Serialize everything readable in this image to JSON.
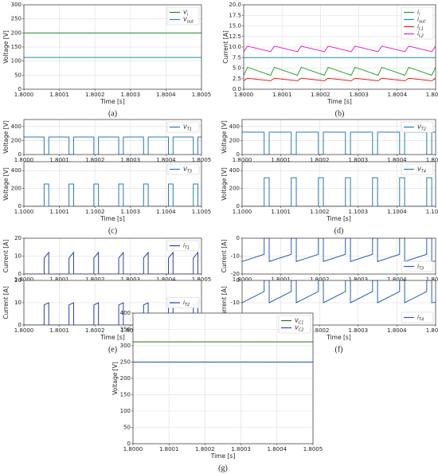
{
  "chart_data": [
    {
      "type": "line",
      "caption": "(a)",
      "ylabel": "Voltage [V]",
      "xlabel": "Time [s]",
      "legend": "upper right",
      "grid": true,
      "xlim": [
        1.8,
        1.8005
      ],
      "xticks": [
        {
          "value": 1.8,
          "label": "1.8000"
        },
        1.8001,
        1.8002,
        1.8003,
        1.8004,
        1.8005
      ],
      "ylim": [
        0,
        300
      ],
      "yticks": [
        0,
        50,
        100,
        150,
        200,
        250,
        300
      ],
      "x": [
        1.8,
        1.8005
      ],
      "series": [
        {
          "name": "V",
          "sub": "i",
          "color": "#1d8a2a",
          "values": [
            200,
            200
          ]
        },
        {
          "name": "V",
          "sub": "out",
          "color": "#1e8fa3",
          "values": [
            113,
            113
          ]
        }
      ]
    },
    {
      "type": "line",
      "caption": "(b)",
      "ylabel": "Current [A]",
      "xlabel": "Time [s]",
      "legend": "upper right",
      "grid": true,
      "xlim": [
        1.8,
        1.8005
      ],
      "xticks": [
        {
          "value": 1.8,
          "label": "1.8000"
        },
        1.8001,
        1.8002,
        1.8003,
        1.8004,
        1.8005
      ],
      "ylim": [
        0,
        20
      ],
      "yticks": [
        {
          "value": 0,
          "label": "0.0"
        },
        2.5,
        {
          "value": 5,
          "label": "5.0"
        },
        7.5,
        {
          "value": 10,
          "label": "10.0"
        },
        12.5,
        {
          "value": 15,
          "label": "15.0"
        },
        17.5,
        {
          "value": 20,
          "label": "20.0"
        }
      ],
      "x": [
        1.8,
        1.80001,
        1.80007,
        1.80008,
        1.80014,
        1.80015,
        1.80021,
        1.80022,
        1.80028,
        1.80029,
        1.80035,
        1.80036,
        1.80042,
        1.80043,
        1.80049,
        1.8005
      ],
      "series": [
        {
          "name": "i",
          "sub": "i",
          "color": "#2ca02c",
          "values": [
            3.3,
            5.2,
            3.3,
            5.2,
            3.3,
            5.2,
            3.3,
            5.2,
            3.3,
            5.2,
            3.3,
            5.2,
            3.3,
            5.2,
            3.3,
            5.2
          ]
        },
        {
          "name": "i",
          "sub": "out",
          "color": "#1e8fa3",
          "values": [
            7.5,
            7.5,
            7.5,
            7.5,
            7.5,
            7.5,
            7.5,
            7.5,
            7.5,
            7.5,
            7.5,
            7.5,
            7.5,
            7.5,
            7.5,
            7.5
          ]
        },
        {
          "name": "i",
          "sub": "L1",
          "color": "#e3201b",
          "values": [
            2.0,
            2.6,
            2.0,
            2.6,
            2.0,
            2.6,
            2.0,
            2.6,
            2.0,
            2.6,
            2.0,
            2.6,
            2.0,
            2.6,
            2.0,
            2.6
          ]
        },
        {
          "name": "i",
          "sub": "L2",
          "color": "#e022d2",
          "values": [
            8.9,
            10.2,
            8.9,
            10.2,
            8.9,
            10.2,
            8.9,
            10.2,
            8.9,
            10.2,
            8.9,
            10.2,
            8.9,
            10.2,
            8.9,
            10.2
          ]
        }
      ]
    },
    {
      "type": "line",
      "ylabel": "Voltage [V]",
      "legend": "upper right",
      "grid": true,
      "xlim": [
        1.8,
        1.8005
      ],
      "xticks": [
        {
          "value": 1.8,
          "label": "1.8000"
        },
        1.8001,
        1.8002,
        1.8003,
        1.8004,
        1.8005
      ],
      "ylim": [
        0,
        500
      ],
      "yticks": [
        0,
        200,
        400
      ],
      "x": [
        1.8,
        1.800057,
        1.800057,
        1.80007,
        1.80007,
        1.800127,
        1.800127,
        1.80014,
        1.80014,
        1.800197,
        1.800197,
        1.80021,
        1.80021,
        1.800267,
        1.800267,
        1.80028,
        1.80028,
        1.800337,
        1.800337,
        1.80035,
        1.80035,
        1.800407,
        1.800407,
        1.80042,
        1.80042,
        1.800477,
        1.800477,
        1.80049,
        1.80049,
        1.8005
      ],
      "series": [
        {
          "name": "V",
          "sub": "T1",
          "color": "#2a7ab0",
          "values": [
            250,
            250,
            0,
            0,
            250,
            250,
            0,
            0,
            250,
            250,
            0,
            0,
            250,
            250,
            0,
            0,
            250,
            250,
            0,
            0,
            250,
            250,
            0,
            0,
            250,
            250,
            0,
            0,
            250,
            250
          ]
        }
      ]
    },
    {
      "type": "line",
      "caption": "(c)",
      "ylabel": "Voltage [V]",
      "xlabel": "Time [s]",
      "legend": "upper right",
      "grid": true,
      "xlim": [
        1.1,
        1.1005
      ],
      "xticks": [
        {
          "value": 1.1,
          "label": "1.1000"
        },
        1.1001,
        1.1002,
        1.1003,
        1.1004,
        1.1005
      ],
      "ylim": [
        0,
        500
      ],
      "yticks": [
        0,
        200,
        400
      ],
      "x": [
        1.1,
        1.100057,
        1.100057,
        1.10007,
        1.10007,
        1.100127,
        1.100127,
        1.10014,
        1.10014,
        1.100197,
        1.100197,
        1.10021,
        1.10021,
        1.100267,
        1.100267,
        1.10028,
        1.10028,
        1.100337,
        1.100337,
        1.10035,
        1.10035,
        1.100407,
        1.100407,
        1.10042,
        1.10042,
        1.100477,
        1.100477,
        1.10049,
        1.10049,
        1.1005
      ],
      "series": [
        {
          "name": "V",
          "sub": "T3",
          "color": "#2a7ab0",
          "values": [
            0,
            0,
            250,
            250,
            0,
            0,
            250,
            250,
            0,
            0,
            250,
            250,
            0,
            0,
            250,
            250,
            0,
            0,
            250,
            250,
            0,
            0,
            250,
            250,
            0,
            0,
            250,
            250,
            0,
            0
          ]
        }
      ]
    },
    {
      "type": "line",
      "ylabel": "Voltage [V]",
      "legend": "upper right",
      "grid": true,
      "xlim": [
        1.8,
        1.8005
      ],
      "xticks": [
        {
          "value": 1.8,
          "label": "1.8000"
        },
        1.8001,
        1.8002,
        1.8003,
        1.8004,
        1.8005
      ],
      "ylim": [
        0,
        500
      ],
      "yticks": [
        0,
        200,
        400
      ],
      "x": [
        1.8,
        1.800057,
        1.800057,
        1.80007,
        1.80007,
        1.800127,
        1.800127,
        1.80014,
        1.80014,
        1.800197,
        1.800197,
        1.80021,
        1.80021,
        1.800267,
        1.800267,
        1.80028,
        1.80028,
        1.800337,
        1.800337,
        1.80035,
        1.80035,
        1.800407,
        1.800407,
        1.80042,
        1.80042,
        1.800477,
        1.800477,
        1.80049,
        1.80049,
        1.8005
      ],
      "series": [
        {
          "name": "V",
          "sub": "T2",
          "color": "#2a7ab0",
          "values": [
            320,
            320,
            0,
            0,
            320,
            320,
            0,
            0,
            320,
            320,
            0,
            0,
            320,
            320,
            0,
            0,
            320,
            320,
            0,
            0,
            320,
            320,
            0,
            0,
            320,
            320,
            0,
            0,
            320,
            320
          ]
        }
      ]
    },
    {
      "type": "line",
      "caption": "(d)",
      "ylabel": "Voltage [V]",
      "xlabel": "Time [s]",
      "legend": "upper right",
      "grid": true,
      "xlim": [
        1.1,
        1.1005
      ],
      "xticks": [
        {
          "value": 1.1,
          "label": "1.1000"
        },
        1.1001,
        1.1002,
        1.1003,
        1.1004,
        1.1005
      ],
      "ylim": [
        0,
        500
      ],
      "yticks": [
        0,
        200,
        400
      ],
      "x": [
        1.1,
        1.100057,
        1.100057,
        1.10007,
        1.10007,
        1.100127,
        1.100127,
        1.10014,
        1.10014,
        1.100197,
        1.100197,
        1.10021,
        1.10021,
        1.100267,
        1.100267,
        1.10028,
        1.10028,
        1.100337,
        1.100337,
        1.10035,
        1.10035,
        1.100407,
        1.100407,
        1.10042,
        1.10042,
        1.100477,
        1.100477,
        1.10049,
        1.10049,
        1.1005
      ],
      "series": [
        {
          "name": "V",
          "sub": "T4",
          "color": "#2a7ab0",
          "values": [
            0,
            0,
            320,
            320,
            0,
            0,
            320,
            320,
            0,
            0,
            320,
            320,
            0,
            0,
            320,
            320,
            0,
            0,
            320,
            320,
            0,
            0,
            320,
            320,
            0,
            0,
            320,
            320,
            0,
            0
          ]
        }
      ]
    },
    {
      "type": "line",
      "ylabel": "Current [A]",
      "legend": "upper right",
      "grid": true,
      "xlim": [
        1.8,
        1.8005
      ],
      "xticks": [
        {
          "value": 1.8,
          "label": "1.8000"
        },
        1.8001,
        1.8002,
        1.8003,
        1.8004,
        1.8005
      ],
      "ylim": [
        0,
        20
      ],
      "yticks": [
        0,
        10,
        20
      ],
      "x": [
        1.8,
        1.800057,
        1.800057,
        1.80007,
        1.80007,
        1.800127,
        1.800127,
        1.80014,
        1.80014,
        1.800197,
        1.800197,
        1.80021,
        1.80021,
        1.800267,
        1.800267,
        1.80028,
        1.80028,
        1.800337,
        1.800337,
        1.80035,
        1.80035,
        1.800407,
        1.800407,
        1.80042,
        1.80042,
        1.800477,
        1.800477,
        1.80049,
        1.80049,
        1.8005
      ],
      "series": [
        {
          "name": "i",
          "sub": "T1",
          "color": "#2346a8",
          "values": [
            0,
            0,
            9,
            12,
            0,
            0,
            9,
            12,
            0,
            0,
            9,
            12,
            0,
            0,
            9,
            12,
            0,
            0,
            9,
            12,
            0,
            0,
            9,
            12,
            0,
            0,
            9,
            12,
            0,
            0
          ]
        }
      ]
    },
    {
      "type": "line",
      "caption": "(e)",
      "ylabel": "Current [A]",
      "xlabel": "Time [s]",
      "legend": "center right",
      "grid": true,
      "xlim": [
        1.8,
        1.8005
      ],
      "xticks": [
        {
          "value": 1.8,
          "label": "1.8000"
        },
        1.8001,
        1.8002,
        1.8003,
        1.8004,
        1.8005
      ],
      "ylim": [
        0,
        20
      ],
      "yticks": [
        0,
        10,
        20
      ],
      "x": [
        1.8,
        1.800057,
        1.800057,
        1.80007,
        1.80007,
        1.800127,
        1.800127,
        1.80014,
        1.80014,
        1.800197,
        1.800197,
        1.80021,
        1.80021,
        1.800267,
        1.800267,
        1.80028,
        1.80028,
        1.800337,
        1.800337,
        1.80035,
        1.80035,
        1.800407,
        1.800407,
        1.80042,
        1.80042,
        1.800477,
        1.800477,
        1.80049,
        1.80049,
        1.8005
      ],
      "series": [
        {
          "name": "i",
          "sub": "T2",
          "color": "#2346a8",
          "values": [
            0,
            0,
            9,
            10,
            0,
            0,
            9,
            10,
            0,
            0,
            9,
            10,
            0,
            0,
            9,
            10,
            0,
            0,
            9,
            10,
            0,
            0,
            9,
            10,
            0,
            0,
            9,
            10,
            0,
            0
          ]
        }
      ]
    },
    {
      "type": "line",
      "ylabel": "Current [A]",
      "legend": "lower right",
      "grid": true,
      "xlim": [
        1.8,
        1.8005
      ],
      "xticks": [
        {
          "value": 1.8,
          "label": "1.8000"
        },
        1.8001,
        1.8002,
        1.8003,
        1.8004,
        1.8005
      ],
      "ylim": [
        -20,
        0
      ],
      "yticks": [
        -20,
        -10,
        0
      ],
      "x": [
        1.8,
        1.800057,
        1.800057,
        1.80007,
        1.80007,
        1.800127,
        1.800127,
        1.80014,
        1.80014,
        1.800197,
        1.800197,
        1.80021,
        1.80021,
        1.800267,
        1.800267,
        1.80028,
        1.80028,
        1.800337,
        1.800337,
        1.80035,
        1.80035,
        1.800407,
        1.800407,
        1.80042,
        1.80042,
        1.800477,
        1.800477,
        1.80049,
        1.80049,
        1.8005
      ],
      "series": [
        {
          "name": "i",
          "sub": "T3",
          "color": "#2a5fb0",
          "values": [
            -13,
            -9,
            0,
            0,
            -13,
            -9,
            0,
            0,
            -13,
            -9,
            0,
            0,
            -13,
            -9,
            0,
            0,
            -13,
            -9,
            0,
            0,
            -13,
            -9,
            0,
            0,
            -13,
            -9,
            0,
            0,
            -13,
            -12.8
          ]
        }
      ]
    },
    {
      "type": "line",
      "caption": "(f)",
      "ylabel": "Current [A]",
      "xlabel": "Time [s]",
      "legend": "lower right",
      "grid": true,
      "xlim": [
        1.8,
        1.8005
      ],
      "xticks": [
        {
          "value": 1.8,
          "label": "1.8000"
        },
        1.8001,
        1.8002,
        1.8003,
        1.8004,
        1.8005
      ],
      "ylim": [
        -20,
        0
      ],
      "yticks": [
        -20,
        -10,
        0
      ],
      "x": [
        1.8,
        1.800057,
        1.800057,
        1.80007,
        1.80007,
        1.800127,
        1.800127,
        1.80014,
        1.80014,
        1.800197,
        1.800197,
        1.80021,
        1.80021,
        1.800267,
        1.800267,
        1.80028,
        1.80028,
        1.800337,
        1.800337,
        1.80035,
        1.80035,
        1.800407,
        1.800407,
        1.80042,
        1.80042,
        1.800477,
        1.800477,
        1.80049,
        1.80049,
        1.8005
      ],
      "series": [
        {
          "name": "i",
          "sub": "T4",
          "color": "#2a5fb0",
          "values": [
            -10,
            -5,
            0,
            0,
            -10,
            -5,
            0,
            0,
            -10,
            -5,
            0,
            0,
            -10,
            -5,
            0,
            0,
            -10,
            -5,
            0,
            0,
            -10,
            -5,
            0,
            0,
            -10,
            -5,
            0,
            0,
            -10,
            -9.8
          ]
        }
      ]
    },
    {
      "type": "line",
      "caption": "(g)",
      "ylabel": "Voltage [V]",
      "xlabel": "Time [s]",
      "legend": "upper right",
      "grid": true,
      "xlim": [
        1.8,
        1.8005
      ],
      "xticks": [
        {
          "value": 1.8,
          "label": "1.8000"
        },
        1.8001,
        1.8002,
        1.8003,
        1.8004,
        1.8005
      ],
      "ylim": [
        0,
        400
      ],
      "yticks": [
        0,
        50,
        100,
        150,
        200,
        250,
        300,
        350,
        400
      ],
      "x": [
        1.8,
        1.8005
      ],
      "series": [
        {
          "name": "V",
          "sub": "C1",
          "color": "#2e6e1e",
          "values": [
            312,
            312
          ]
        },
        {
          "name": "V",
          "sub": "C2",
          "color": "#1f4fb0",
          "values": [
            250,
            250
          ]
        }
      ]
    }
  ]
}
